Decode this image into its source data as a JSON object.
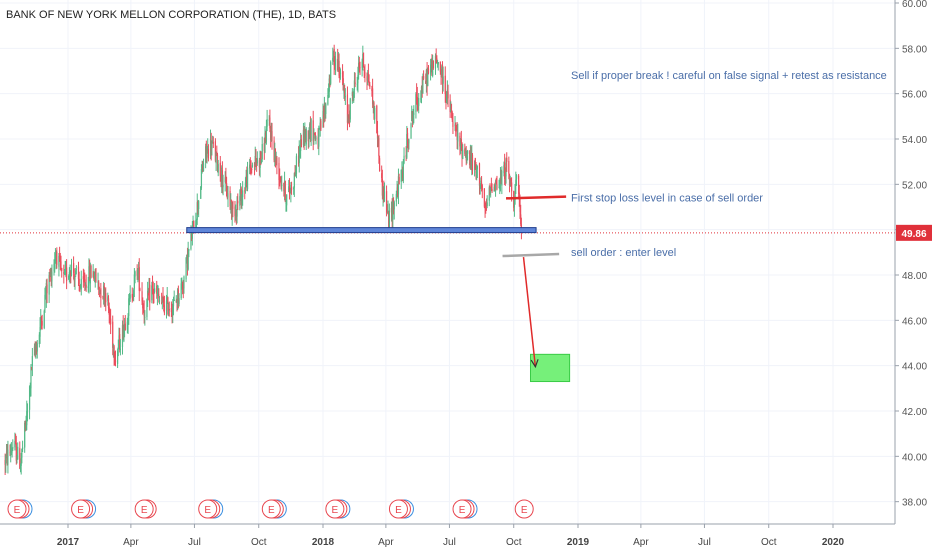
{
  "chart_data": {
    "type": "candlestick",
    "title": "BANK OF NEW YORK MELLON CORPORATION (THE), 1D, BATS",
    "ylim": [
      37.5,
      60
    ],
    "y_ticks": [
      "38.00",
      "40.00",
      "42.00",
      "44.00",
      "46.00",
      "48.00",
      "50.00",
      "52.00",
      "54.00",
      "56.00",
      "58.00",
      "60.00"
    ],
    "x_ticks": [
      "2017",
      "Apr",
      "Jul",
      "Oct",
      "2018",
      "Apr",
      "Jul",
      "Oct",
      "2019",
      "Apr",
      "Jul",
      "Oct",
      "2020"
    ],
    "last_price": 49.86,
    "last_price_label": "49.86",
    "support_level": 49.98,
    "path": [
      {
        "d": "2016-10-03",
        "p": 39.8
      },
      {
        "d": "2016-10-15",
        "p": 40.5
      },
      {
        "d": "2016-10-25",
        "p": 39.7
      },
      {
        "d": "2016-11-05",
        "p": 42.2
      },
      {
        "d": "2016-11-10",
        "p": 44.0
      },
      {
        "d": "2016-11-20",
        "p": 45.3
      },
      {
        "d": "2016-12-01",
        "p": 47.3
      },
      {
        "d": "2016-12-15",
        "p": 49.0
      },
      {
        "d": "2016-12-25",
        "p": 47.7
      },
      {
        "d": "2017-01-05",
        "p": 48.4
      },
      {
        "d": "2017-01-20",
        "p": 47.4
      },
      {
        "d": "2017-02-05",
        "p": 48.2
      },
      {
        "d": "2017-02-15",
        "p": 47.4
      },
      {
        "d": "2017-02-25",
        "p": 47.2
      },
      {
        "d": "2017-03-05",
        "p": 45.3
      },
      {
        "d": "2017-03-10",
        "p": 44.4
      },
      {
        "d": "2017-03-20",
        "p": 45.5
      },
      {
        "d": "2017-04-01",
        "p": 47.0
      },
      {
        "d": "2017-04-10",
        "p": 48.3
      },
      {
        "d": "2017-04-20",
        "p": 46.4
      },
      {
        "d": "2017-05-01",
        "p": 47.4
      },
      {
        "d": "2017-05-15",
        "p": 46.7
      },
      {
        "d": "2017-06-01",
        "p": 46.6
      },
      {
        "d": "2017-06-15",
        "p": 47.7
      },
      {
        "d": "2017-06-25",
        "p": 49.4
      },
      {
        "d": "2017-07-05",
        "p": 51.0
      },
      {
        "d": "2017-07-15",
        "p": 53.2
      },
      {
        "d": "2017-07-25",
        "p": 53.8
      },
      {
        "d": "2017-08-10",
        "p": 52.3
      },
      {
        "d": "2017-08-25",
        "p": 50.8
      },
      {
        "d": "2017-09-05",
        "p": 51.4
      },
      {
        "d": "2017-09-20",
        "p": 52.8
      },
      {
        "d": "2017-10-05",
        "p": 53.2
      },
      {
        "d": "2017-10-15",
        "p": 54.8
      },
      {
        "d": "2017-10-25",
        "p": 53.1
      },
      {
        "d": "2017-11-10",
        "p": 51.4
      },
      {
        "d": "2017-11-20",
        "p": 52.2
      },
      {
        "d": "2017-12-01",
        "p": 53.9
      },
      {
        "d": "2017-12-15",
        "p": 54.5
      },
      {
        "d": "2017-12-25",
        "p": 53.9
      },
      {
        "d": "2018-01-05",
        "p": 55.5
      },
      {
        "d": "2018-01-15",
        "p": 57.6
      },
      {
        "d": "2018-01-25",
        "p": 57.2
      },
      {
        "d": "2018-02-05",
        "p": 54.9
      },
      {
        "d": "2018-02-15",
        "p": 56.3
      },
      {
        "d": "2018-02-25",
        "p": 57.6
      },
      {
        "d": "2018-03-10",
        "p": 56.3
      },
      {
        "d": "2018-03-20",
        "p": 54.2
      },
      {
        "d": "2018-03-25",
        "p": 52.1
      },
      {
        "d": "2018-04-01",
        "p": 51.2
      },
      {
        "d": "2018-04-05",
        "p": 50.3
      },
      {
        "d": "2018-04-15",
        "p": 51.5
      },
      {
        "d": "2018-04-25",
        "p": 52.6
      },
      {
        "d": "2018-05-05",
        "p": 54.6
      },
      {
        "d": "2018-05-15",
        "p": 55.7
      },
      {
        "d": "2018-05-25",
        "p": 56.4
      },
      {
        "d": "2018-06-05",
        "p": 57.2
      },
      {
        "d": "2018-06-15",
        "p": 57.4
      },
      {
        "d": "2018-06-25",
        "p": 56.2
      },
      {
        "d": "2018-07-05",
        "p": 54.8
      },
      {
        "d": "2018-07-15",
        "p": 53.7
      },
      {
        "d": "2018-07-25",
        "p": 53.4
      },
      {
        "d": "2018-08-05",
        "p": 52.7
      },
      {
        "d": "2018-08-15",
        "p": 52.2
      },
      {
        "d": "2018-08-20",
        "p": 50.6
      },
      {
        "d": "2018-09-01",
        "p": 52.2
      },
      {
        "d": "2018-09-10",
        "p": 51.9
      },
      {
        "d": "2018-09-20",
        "p": 52.8
      },
      {
        "d": "2018-10-01",
        "p": 51.4
      },
      {
        "d": "2018-10-05",
        "p": 52.3
      },
      {
        "d": "2018-10-12",
        "p": 49.86
      }
    ],
    "annotations": {
      "note": "Sell if proper break ! careful on false signal + retest as resistance",
      "stop_loss": "First stop loss level in case of sell order",
      "sell_order": "sell order : enter level"
    },
    "colors": {
      "up": "#53b987",
      "down": "#eb4d5c",
      "support_fill": "#5f86d9",
      "support_border": "#1e3c8c",
      "stop_line": "#e02a2a",
      "entry_line": "#a8a8a8",
      "arrow": "#e02a2a",
      "target_fill": "#76f07a",
      "target_border": "#3acb47",
      "price_tag": "#e0303a",
      "earnings": "#e8464f",
      "earnings_blue": "#3b8fe0"
    },
    "earnings_label": "E",
    "earnings_events": [
      {
        "d": "2016-10-20",
        "extra": 2
      },
      {
        "d": "2017-01-19",
        "extra": 2
      },
      {
        "d": "2017-04-20",
        "extra": 1
      },
      {
        "d": "2017-07-20",
        "extra": 2
      },
      {
        "d": "2017-10-19",
        "extra": 2
      },
      {
        "d": "2018-01-18",
        "extra": 2
      },
      {
        "d": "2018-04-19",
        "extra": 2
      },
      {
        "d": "2018-07-19",
        "extra": 2
      },
      {
        "d": "2018-10-16",
        "extra": 0
      }
    ]
  }
}
